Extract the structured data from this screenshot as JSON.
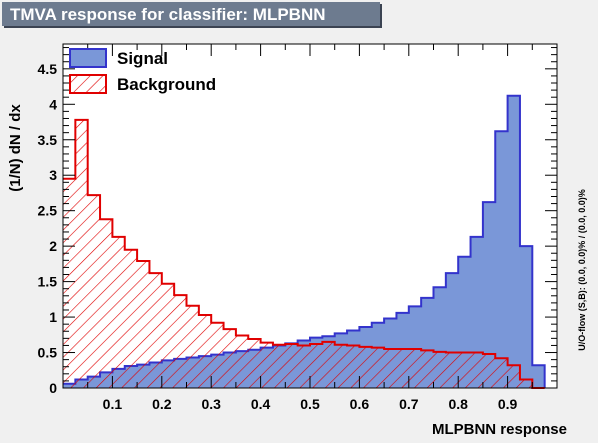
{
  "title": "TMVA response for classifier: MLPBNN",
  "side_note": "U/O-flow (S,B): (0.0, 0.0)% / (0.0, 0.0)%",
  "chart_data": {
    "type": "histogram",
    "title": "TMVA response for classifier: MLPBNN",
    "xlabel": "MLPBNN response",
    "ylabel": "(1/N) dN / dx",
    "xlim": [
      0.0,
      1.0
    ],
    "ylim": [
      0,
      4.85
    ],
    "x_ticks": [
      "0.1",
      "0.2",
      "0.3",
      "0.4",
      "0.5",
      "0.6",
      "0.7",
      "0.8",
      "0.9"
    ],
    "y_ticks": [
      "0.5",
      "1",
      "1.5",
      "2",
      "2.5",
      "3",
      "3.5",
      "4",
      "4.5"
    ],
    "legend_position": "top-left",
    "bin_edges": [
      0.0,
      0.025,
      0.05,
      0.075,
      0.1,
      0.125,
      0.15,
      0.175,
      0.2,
      0.225,
      0.25,
      0.275,
      0.3,
      0.325,
      0.35,
      0.375,
      0.4,
      0.425,
      0.45,
      0.475,
      0.5,
      0.525,
      0.55,
      0.575,
      0.6,
      0.625,
      0.65,
      0.675,
      0.7,
      0.725,
      0.75,
      0.775,
      0.8,
      0.825,
      0.85,
      0.875,
      0.9,
      0.925,
      0.95,
      0.975
    ],
    "series": [
      {
        "name": "Signal",
        "color": "#3333cc",
        "fill": "#7a97d8",
        "style": "solid",
        "values": [
          0.06,
          0.12,
          0.16,
          0.22,
          0.27,
          0.31,
          0.33,
          0.36,
          0.39,
          0.41,
          0.43,
          0.45,
          0.47,
          0.5,
          0.52,
          0.54,
          0.57,
          0.6,
          0.63,
          0.67,
          0.71,
          0.73,
          0.77,
          0.81,
          0.86,
          0.92,
          0.98,
          1.06,
          1.15,
          1.27,
          1.42,
          1.62,
          1.85,
          2.13,
          2.62,
          3.62,
          4.12,
          2.0,
          0.32
        ]
      },
      {
        "name": "Background",
        "color": "#e00000",
        "fill": "#e00000",
        "style": "hatched",
        "values": [
          2.95,
          3.78,
          2.72,
          2.38,
          2.13,
          1.95,
          1.79,
          1.62,
          1.47,
          1.31,
          1.16,
          1.03,
          0.92,
          0.83,
          0.74,
          0.69,
          0.64,
          0.61,
          0.62,
          0.6,
          0.62,
          0.65,
          0.61,
          0.6,
          0.58,
          0.57,
          0.55,
          0.55,
          0.55,
          0.53,
          0.51,
          0.5,
          0.5,
          0.5,
          0.48,
          0.42,
          0.32,
          0.12,
          0.0
        ]
      }
    ]
  }
}
